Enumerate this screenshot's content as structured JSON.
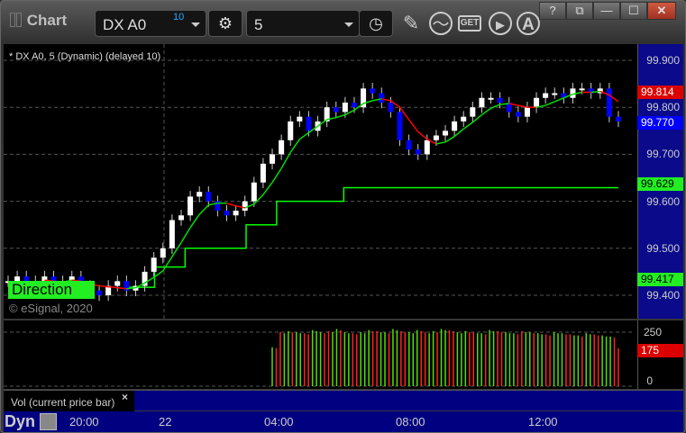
{
  "window": {
    "title": "Chart",
    "controls": [
      "?",
      "restore",
      "minimize",
      "maximize",
      "close"
    ]
  },
  "toolbar": {
    "symbol": "DX A0",
    "symbol_badge": "10",
    "interval": "5",
    "icons": [
      "settings-icon",
      "clock-icon",
      "pencil-icon",
      "study-icon",
      "get-icon",
      "play-icon",
      "alert-icon"
    ]
  },
  "chart": {
    "legend": "* DX A0, 5 (Dynamic) (delayed 10)",
    "watermark": "© eSignal, 2020",
    "direction_label": "Direction",
    "price_ticks": [
      "99.900",
      "99.800",
      "99.700",
      "99.600",
      "99.500",
      "99.400"
    ],
    "tags": {
      "ma_red": "99.814",
      "last": "99.770",
      "step_high": "99.629",
      "step_low": "99.417"
    },
    "colors": {
      "up": "#ffffff",
      "down": "#0000ff",
      "ma_up": "#00dd00",
      "ma_down": "#ff0000",
      "step": "#00ff00",
      "vol_up": "#55dd00",
      "vol_down": "#ff2222"
    }
  },
  "chart_data": {
    "type": "candlestick",
    "closes": [
      99.43,
      99.44,
      99.42,
      99.43,
      99.44,
      99.42,
      99.43,
      99.44,
      99.42,
      99.41,
      99.4,
      99.42,
      99.43,
      99.41,
      99.42,
      99.45,
      99.48,
      99.5,
      99.56,
      99.57,
      99.61,
      99.62,
      99.6,
      99.58,
      99.57,
      99.58,
      99.6,
      99.64,
      99.68,
      99.7,
      99.73,
      99.77,
      99.78,
      99.75,
      99.77,
      99.8,
      99.79,
      99.81,
      99.8,
      99.84,
      99.83,
      99.81,
      99.79,
      99.73,
      99.71,
      99.7,
      99.73,
      99.74,
      99.75,
      99.77,
      99.78,
      99.8,
      99.82,
      99.82,
      99.81,
      99.79,
      99.78,
      99.8,
      99.82,
      99.83,
      99.83,
      99.82,
      99.84,
      99.84,
      99.83,
      99.84,
      99.78,
      99.77
    ],
    "step_levels": [
      [
        0.19,
        99.417
      ],
      [
        0.24,
        99.46
      ],
      [
        0.29,
        99.5
      ],
      [
        0.39,
        99.55
      ],
      [
        0.44,
        99.6
      ],
      [
        0.55,
        99.629
      ]
    ],
    "volume": [
      180,
      250,
      255,
      250,
      245,
      260,
      250,
      255,
      265,
      250,
      245,
      250,
      260,
      255,
      250,
      265,
      255,
      250,
      260,
      250,
      255,
      265,
      260,
      250,
      255,
      250,
      245,
      260,
      255,
      250,
      245,
      255,
      250,
      245,
      240,
      250,
      245,
      240,
      235,
      245,
      240,
      235,
      230,
      175
    ],
    "volume_ticks": [
      "250",
      "0"
    ],
    "volume_tag": "175",
    "time_ticks": [
      "20:00",
      "22",
      "04:00",
      "08:00",
      "12:00"
    ],
    "yrange": [
      99.38,
      99.93
    ]
  },
  "volume_pane": {
    "label": "Vol (current price bar)",
    "close": "×"
  },
  "footer": {
    "mode": "Dyn"
  }
}
